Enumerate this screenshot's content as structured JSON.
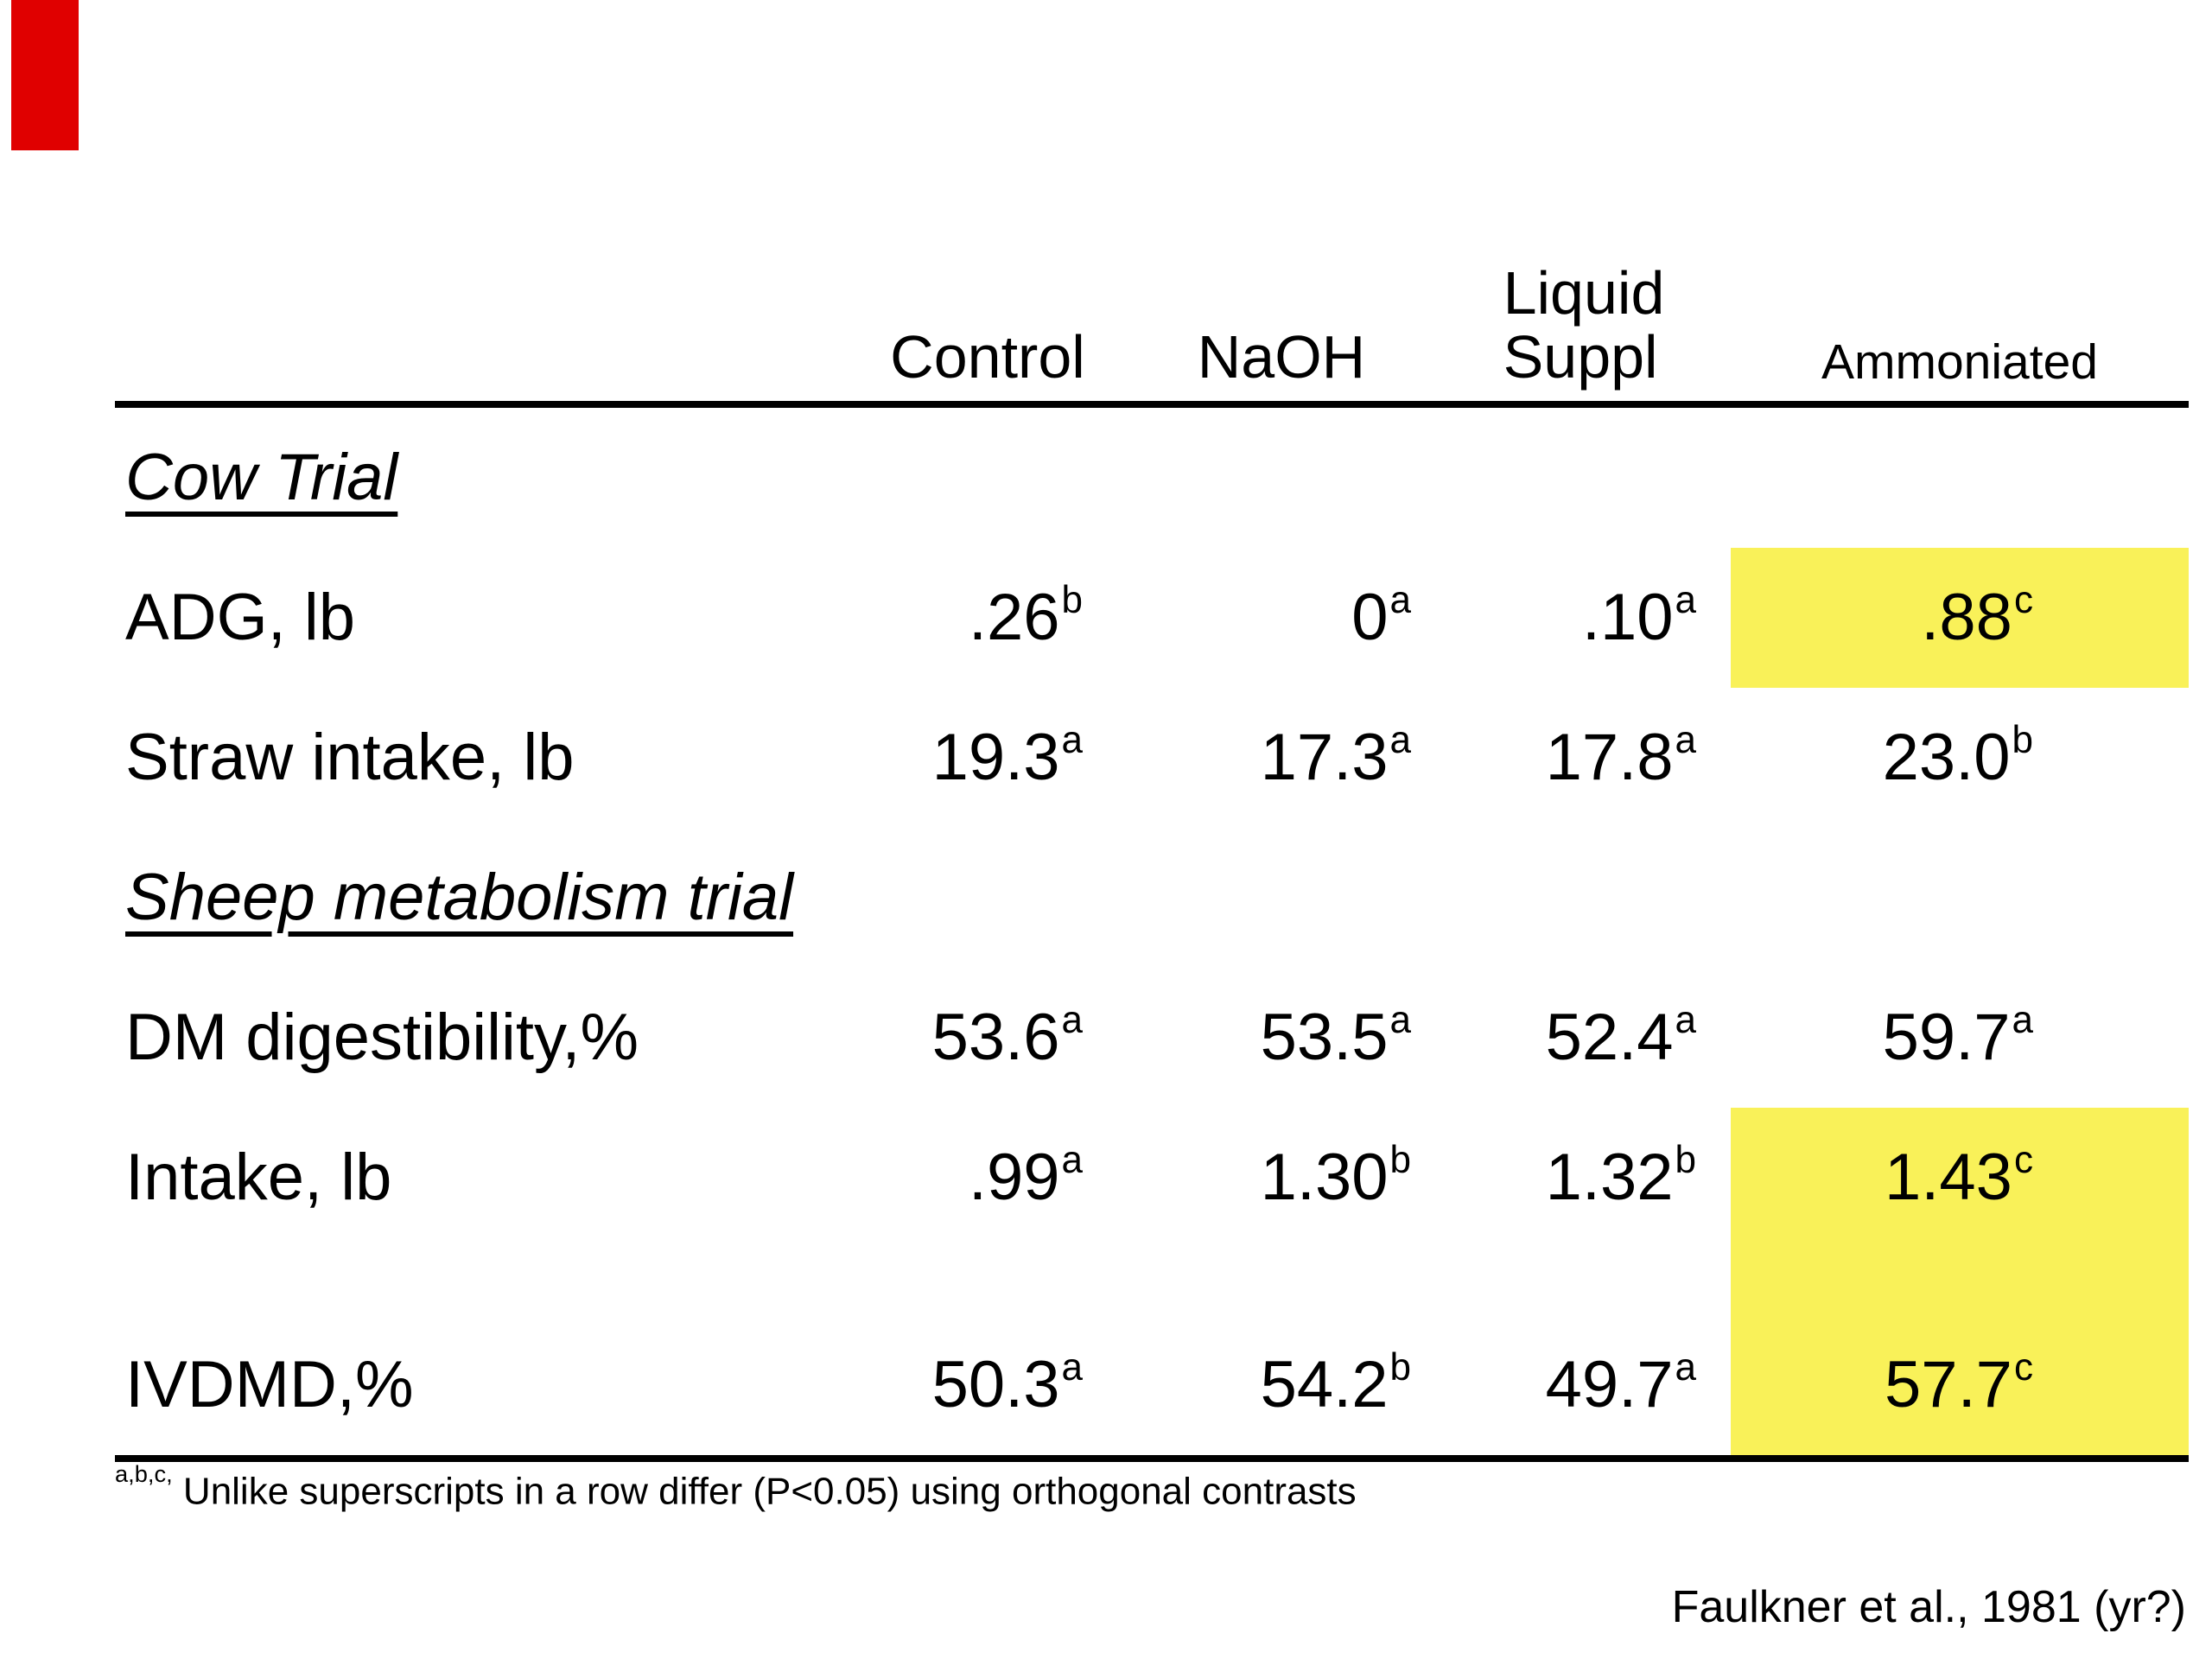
{
  "table": {
    "column_headers": [
      {
        "label": "Control"
      },
      {
        "label": "NaOH"
      },
      {
        "label": "Liquid",
        "label2": "Suppl"
      },
      {
        "label": "Ammoniated"
      }
    ],
    "rows": [
      {
        "type": "section",
        "label": "Cow Trial"
      },
      {
        "type": "data",
        "label": "ADG, lb",
        "cells": [
          {
            "v": ".26",
            "s": "b"
          },
          {
            "v": "0",
            "s": "a"
          },
          {
            "v": ".10",
            "s": "a"
          },
          {
            "v": ".88",
            "s": "c",
            "highlight": true
          }
        ]
      },
      {
        "type": "data",
        "label": "Straw intake, lb",
        "cells": [
          {
            "v": "19.3",
            "s": "a"
          },
          {
            "v": "17.3",
            "s": "a"
          },
          {
            "v": "17.8",
            "s": "a"
          },
          {
            "v": "23.0",
            "s": "b"
          }
        ]
      },
      {
        "type": "section",
        "label": "Sheep metabolism trial"
      },
      {
        "type": "data",
        "label": "DM digestibility,%",
        "cells": [
          {
            "v": "53.6",
            "s": "a"
          },
          {
            "v": "53.5",
            "s": "a"
          },
          {
            "v": "52.4",
            "s": "a"
          },
          {
            "v": "59.7",
            "s": "a"
          }
        ]
      },
      {
        "type": "data",
        "label": "Intake, lb",
        "cells": [
          {
            "v": ".99",
            "s": "a"
          },
          {
            "v": "1.30",
            "s": "b"
          },
          {
            "v": "1.32",
            "s": "b"
          },
          {
            "v": "1.43",
            "s": "c",
            "highlight": true
          }
        ]
      },
      {
        "type": "data",
        "label": "IVDMD,%",
        "cells": [
          {
            "v": "50.3",
            "s": "a"
          },
          {
            "v": "54.2",
            "s": "b"
          },
          {
            "v": "49.7",
            "s": "a"
          },
          {
            "v": "57.7",
            "s": "c",
            "highlight": true
          }
        ]
      }
    ]
  },
  "footnote": {
    "sup": "a,b,c,",
    "text": " Unlike superscripts in a row differ (P<0.05) using orthogonal contrasts"
  },
  "attribution": "Faulkner et al., 1981 (yr?)",
  "colors": {
    "highlight": "#f9f159",
    "accent_red": "#e00000",
    "text": "#000000",
    "background": "#ffffff"
  }
}
